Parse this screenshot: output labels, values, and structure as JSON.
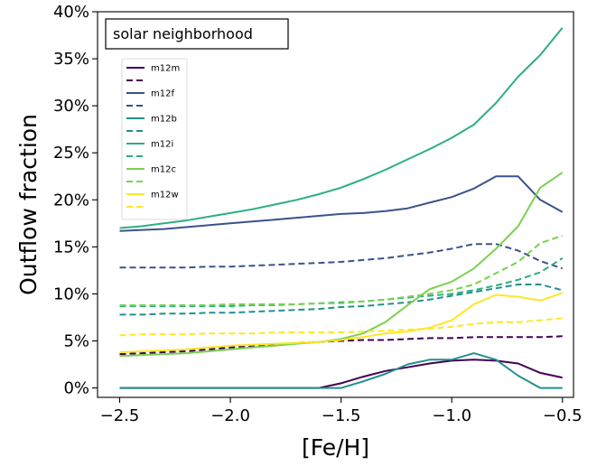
{
  "chart_data": {
    "type": "line",
    "xlabel": "[Fe/H]",
    "ylabel": "Outflow fraction",
    "annotation": "solar neighborhood",
    "xlim": [
      -2.6,
      -0.45
    ],
    "ylim": [
      -0.01,
      0.4
    ],
    "xticks": [
      -2.5,
      -2.0,
      -1.5,
      -1.0,
      -0.5
    ],
    "xtick_labels": [
      "−2.5",
      "−2.0",
      "−1.5",
      "−1.0",
      "−0.5"
    ],
    "yticks": [
      0,
      0.05,
      0.1,
      0.15,
      0.2,
      0.25,
      0.3,
      0.35,
      0.4
    ],
    "ytick_labels": [
      "0%",
      "5%",
      "10%",
      "15%",
      "20%",
      "25%",
      "30%",
      "35%",
      "40%"
    ],
    "grid": false,
    "legend_position": "upper-left",
    "x": [
      -2.5,
      -2.4,
      -2.3,
      -2.2,
      -2.1,
      -2.0,
      -1.9,
      -1.8,
      -1.7,
      -1.6,
      -1.5,
      -1.4,
      -1.3,
      -1.2,
      -1.1,
      -1.0,
      -0.9,
      -0.8,
      -0.7,
      -0.6,
      -0.5
    ],
    "series": [
      {
        "name": "m12m",
        "color": "#440154",
        "style": "solid",
        "values": [
          0,
          0,
          0,
          0,
          0,
          0,
          0,
          0,
          0,
          0,
          0.005,
          0.012,
          0.018,
          0.022,
          0.026,
          0.029,
          0.03,
          0.029,
          0.026,
          0.016,
          0.011
        ]
      },
      {
        "name": "",
        "color": "#440154",
        "style": "dashed",
        "values": [
          0.036,
          0.037,
          0.038,
          0.039,
          0.041,
          0.043,
          0.045,
          0.046,
          0.048,
          0.049,
          0.05,
          0.051,
          0.051,
          0.052,
          0.053,
          0.053,
          0.054,
          0.054,
          0.054,
          0.054,
          0.055
        ]
      },
      {
        "name": "m12f",
        "color": "#3b528b",
        "style": "solid",
        "values": [
          0.167,
          0.168,
          0.169,
          0.171,
          0.173,
          0.175,
          0.177,
          0.179,
          0.181,
          0.183,
          0.185,
          0.186,
          0.188,
          0.191,
          0.197,
          0.203,
          0.212,
          0.225,
          0.225,
          0.2,
          0.187
        ]
      },
      {
        "name": "",
        "color": "#3b528b",
        "style": "dashed",
        "values": [
          0.128,
          0.128,
          0.128,
          0.128,
          0.129,
          0.129,
          0.13,
          0.131,
          0.132,
          0.133,
          0.134,
          0.136,
          0.138,
          0.141,
          0.144,
          0.148,
          0.153,
          0.153,
          0.146,
          0.135,
          0.127
        ]
      },
      {
        "name": "m12b",
        "color": "#21908d",
        "style": "solid",
        "values": [
          0,
          0,
          0,
          0,
          0,
          0,
          0,
          0,
          0,
          0,
          0,
          0.007,
          0.015,
          0.025,
          0.03,
          0.03,
          0.037,
          0.03,
          0.013,
          0,
          0
        ]
      },
      {
        "name": "",
        "color": "#21908d",
        "style": "dashed",
        "values": [
          0.078,
          0.078,
          0.079,
          0.079,
          0.08,
          0.08,
          0.081,
          0.082,
          0.083,
          0.084,
          0.086,
          0.087,
          0.089,
          0.091,
          0.094,
          0.098,
          0.102,
          0.106,
          0.11,
          0.11,
          0.104
        ]
      },
      {
        "name": "m12i",
        "color": "#2ab07f",
        "style": "solid",
        "values": [
          0.17,
          0.172,
          0.175,
          0.178,
          0.182,
          0.186,
          0.19,
          0.195,
          0.2,
          0.206,
          0.213,
          0.222,
          0.232,
          0.243,
          0.254,
          0.266,
          0.28,
          0.303,
          0.331,
          0.354,
          0.383
        ]
      },
      {
        "name": "",
        "color": "#2ab07f",
        "style": "dashed",
        "values": [
          0.087,
          0.087,
          0.087,
          0.087,
          0.087,
          0.087,
          0.088,
          0.088,
          0.089,
          0.09,
          0.091,
          0.092,
          0.094,
          0.096,
          0.098,
          0.1,
          0.104,
          0.109,
          0.115,
          0.123,
          0.138
        ]
      },
      {
        "name": "m12c",
        "color": "#7ad151",
        "style": "solid",
        "values": [
          0.034,
          0.035,
          0.036,
          0.037,
          0.039,
          0.041,
          0.043,
          0.045,
          0.047,
          0.049,
          0.052,
          0.058,
          0.07,
          0.088,
          0.105,
          0.113,
          0.127,
          0.148,
          0.172,
          0.213,
          0.229
        ]
      },
      {
        "name": "",
        "color": "#7ad151",
        "style": "dashed",
        "values": [
          0.088,
          0.088,
          0.088,
          0.088,
          0.088,
          0.089,
          0.089,
          0.089,
          0.089,
          0.09,
          0.09,
          0.092,
          0.094,
          0.097,
          0.1,
          0.104,
          0.11,
          0.122,
          0.134,
          0.154,
          0.162
        ]
      },
      {
        "name": "m12w",
        "color": "#fde725",
        "style": "solid",
        "values": [
          0.038,
          0.039,
          0.04,
          0.041,
          0.043,
          0.045,
          0.046,
          0.047,
          0.048,
          0.049,
          0.051,
          0.054,
          0.058,
          0.06,
          0.064,
          0.072,
          0.089,
          0.099,
          0.097,
          0.093,
          0.101
        ]
      },
      {
        "name": "",
        "color": "#fde725",
        "style": "dashed",
        "values": [
          0.056,
          0.057,
          0.057,
          0.057,
          0.058,
          0.058,
          0.058,
          0.059,
          0.059,
          0.059,
          0.059,
          0.06,
          0.061,
          0.062,
          0.063,
          0.065,
          0.068,
          0.07,
          0.07,
          0.072,
          0.074
        ]
      }
    ]
  }
}
